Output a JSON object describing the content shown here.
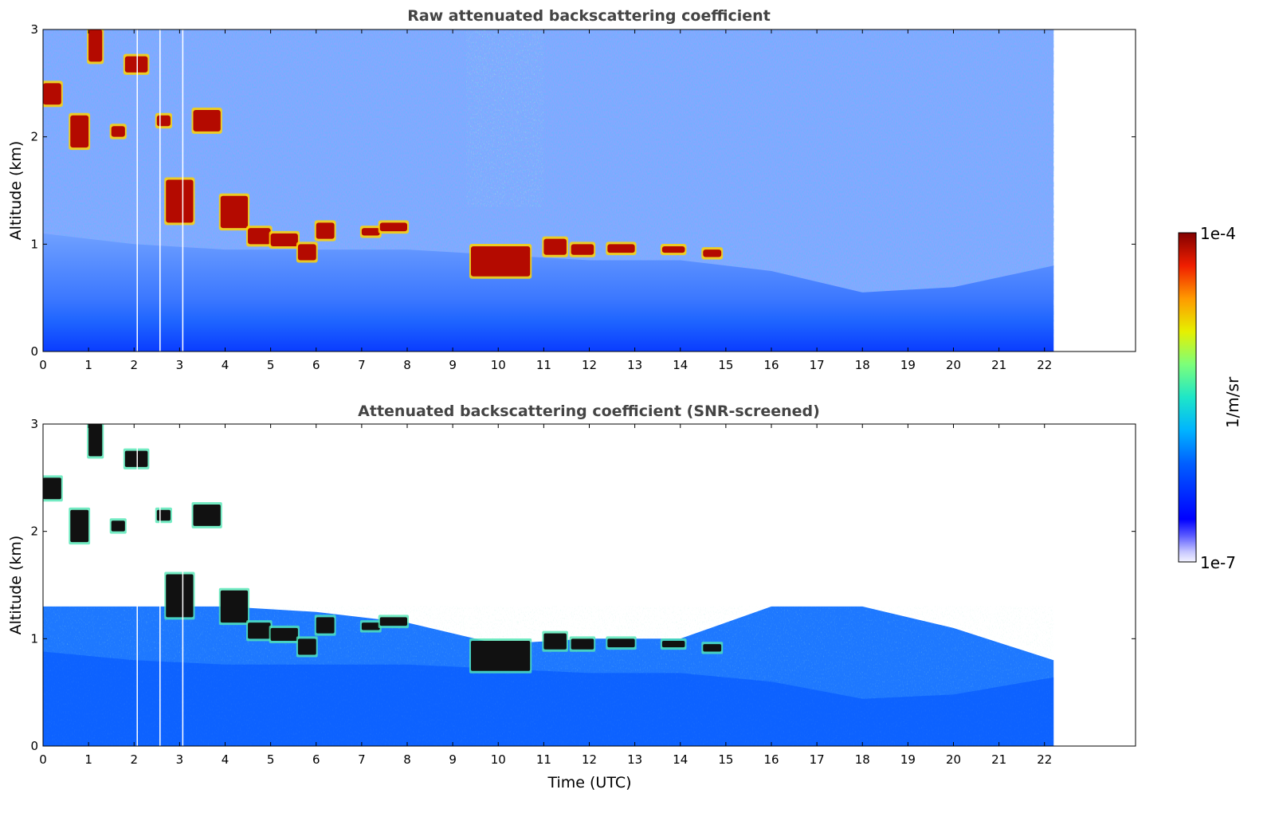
{
  "chart_data": [
    {
      "type": "heatmap",
      "title": "Raw attenuated backscattering coefficient",
      "xlabel": "",
      "ylabel": "Altitude (km)",
      "xlim": [
        0,
        24
      ],
      "ylim": [
        0,
        3
      ],
      "x_ticks": [
        "0",
        "1",
        "2",
        "3",
        "4",
        "5",
        "6",
        "7",
        "8",
        "9",
        "10",
        "11",
        "12",
        "13",
        "14",
        "15",
        "16",
        "17",
        "18",
        "19",
        "20",
        "21",
        "22"
      ],
      "y_ticks": [
        "0",
        "1",
        "2",
        "3"
      ],
      "data_end_time": 22.2,
      "missing_data_times": [
        2.07,
        2.57,
        3.07
      ],
      "aerosol_layer": [
        {
          "time": 0,
          "top_km": 1.1
        },
        {
          "time": 2,
          "top_km": 1.0
        },
        {
          "time": 4,
          "top_km": 0.95
        },
        {
          "time": 6,
          "top_km": 0.95
        },
        {
          "time": 8,
          "top_km": 0.95
        },
        {
          "time": 10,
          "top_km": 0.9
        },
        {
          "time": 12,
          "top_km": 0.85
        },
        {
          "time": 14,
          "top_km": 0.85
        },
        {
          "time": 16,
          "top_km": 0.75
        },
        {
          "time": 18,
          "top_km": 0.55
        },
        {
          "time": 20,
          "top_km": 0.6
        },
        {
          "time": 22.2,
          "top_km": 0.8
        }
      ],
      "cloud_features": [
        {
          "time_start": 0.0,
          "time_end": 0.4,
          "alt_low_km": 2.3,
          "alt_high_km": 2.5
        },
        {
          "time_start": 0.6,
          "time_end": 1.0,
          "alt_low_km": 1.9,
          "alt_high_km": 2.2
        },
        {
          "time_start": 1.0,
          "time_end": 1.3,
          "alt_low_km": 2.7,
          "alt_high_km": 3.0
        },
        {
          "time_start": 1.5,
          "time_end": 1.8,
          "alt_low_km": 2.0,
          "alt_high_km": 2.1
        },
        {
          "time_start": 1.8,
          "time_end": 2.3,
          "alt_low_km": 2.6,
          "alt_high_km": 2.75
        },
        {
          "time_start": 2.5,
          "time_end": 2.8,
          "alt_low_km": 2.1,
          "alt_high_km": 2.2
        },
        {
          "time_start": 2.7,
          "time_end": 3.3,
          "alt_low_km": 1.2,
          "alt_high_km": 1.6
        },
        {
          "time_start": 3.3,
          "time_end": 3.9,
          "alt_low_km": 2.05,
          "alt_high_km": 2.25
        },
        {
          "time_start": 3.9,
          "time_end": 4.5,
          "alt_low_km": 1.15,
          "alt_high_km": 1.45
        },
        {
          "time_start": 4.5,
          "time_end": 5.0,
          "alt_low_km": 1.0,
          "alt_high_km": 1.15
        },
        {
          "time_start": 5.0,
          "time_end": 5.6,
          "alt_low_km": 0.98,
          "alt_high_km": 1.1
        },
        {
          "time_start": 5.6,
          "time_end": 6.0,
          "alt_low_km": 0.85,
          "alt_high_km": 1.0
        },
        {
          "time_start": 6.0,
          "time_end": 6.4,
          "alt_low_km": 1.05,
          "alt_high_km": 1.2
        },
        {
          "time_start": 7.0,
          "time_end": 7.4,
          "alt_low_km": 1.08,
          "alt_high_km": 1.15
        },
        {
          "time_start": 7.4,
          "time_end": 8.0,
          "alt_low_km": 1.12,
          "alt_high_km": 1.2
        },
        {
          "time_start": 9.4,
          "time_end": 10.7,
          "alt_low_km": 0.7,
          "alt_high_km": 0.98
        },
        {
          "time_start": 11.0,
          "time_end": 11.5,
          "alt_low_km": 0.9,
          "alt_high_km": 1.05
        },
        {
          "time_start": 11.6,
          "time_end": 12.1,
          "alt_low_km": 0.9,
          "alt_high_km": 1.0
        },
        {
          "time_start": 12.4,
          "time_end": 13.0,
          "alt_low_km": 0.92,
          "alt_high_km": 1.0
        },
        {
          "time_start": 13.6,
          "time_end": 14.1,
          "alt_low_km": 0.92,
          "alt_high_km": 0.98
        },
        {
          "time_start": 14.5,
          "time_end": 14.9,
          "alt_low_km": 0.88,
          "alt_high_km": 0.95
        }
      ]
    },
    {
      "type": "heatmap",
      "title": "Attenuated backscattering coefficient (SNR-screened)",
      "xlabel": "Time (UTC)",
      "ylabel": "Altitude (km)",
      "xlim": [
        0,
        24
      ],
      "ylim": [
        0,
        3
      ],
      "x_ticks": [
        "0",
        "1",
        "2",
        "3",
        "4",
        "5",
        "6",
        "7",
        "8",
        "9",
        "10",
        "11",
        "12",
        "13",
        "14",
        "15",
        "16",
        "17",
        "18",
        "19",
        "20",
        "21",
        "22"
      ],
      "y_ticks": [
        "0",
        "1",
        "2",
        "3"
      ],
      "data_end_time": 22.2,
      "missing_data_times": [
        2.07,
        2.57,
        3.07
      ],
      "screened_top": [
        {
          "time": 0,
          "top_km": 1.3
        },
        {
          "time": 2,
          "top_km": 1.3
        },
        {
          "time": 4,
          "top_km": 1.3
        },
        {
          "time": 6,
          "top_km": 1.25
        },
        {
          "time": 8,
          "top_km": 1.15
        },
        {
          "time": 10,
          "top_km": 0.95
        },
        {
          "time": 12,
          "top_km": 1.0
        },
        {
          "time": 14,
          "top_km": 1.0
        },
        {
          "time": 16,
          "top_km": 1.3
        },
        {
          "time": 18,
          "top_km": 1.3
        },
        {
          "time": 20,
          "top_km": 1.1
        },
        {
          "time": 22.2,
          "top_km": 0.8
        }
      ]
    }
  ],
  "colorbar": {
    "max_label": "1e-4",
    "min_label": "1e-7",
    "unit_label": "1/m/sr",
    "colormap": "jet"
  }
}
